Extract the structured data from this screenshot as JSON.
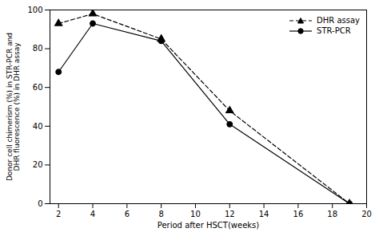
{
  "chart_data": {
    "type": "line",
    "xlabel": "Period after HSCT(weeks)",
    "ylabel": "Donor cell chimerism (%) in STR-PCR and\nDHR fluorescence (%) in DHR assay",
    "x": [
      2,
      4,
      8,
      12,
      19
    ],
    "series": [
      {
        "name": "DHR assay",
        "color": "#000000",
        "values": [
          93,
          98,
          85,
          48,
          0
        ],
        "marker": "triangle",
        "line_style": "dashed"
      },
      {
        "name": "STR-PCR",
        "color": "#000000",
        "values": [
          68,
          93,
          84,
          41,
          0
        ],
        "marker": "circle",
        "line_style": "solid"
      }
    ],
    "xlim": [
      1.5,
      20
    ],
    "ylim": [
      0,
      100
    ],
    "xticks": [
      2,
      4,
      6,
      8,
      10,
      12,
      14,
      16,
      18,
      20
    ],
    "yticks": [
      0,
      20,
      40,
      60,
      80,
      100
    ],
    "legend": "upper right",
    "grid": false
  }
}
